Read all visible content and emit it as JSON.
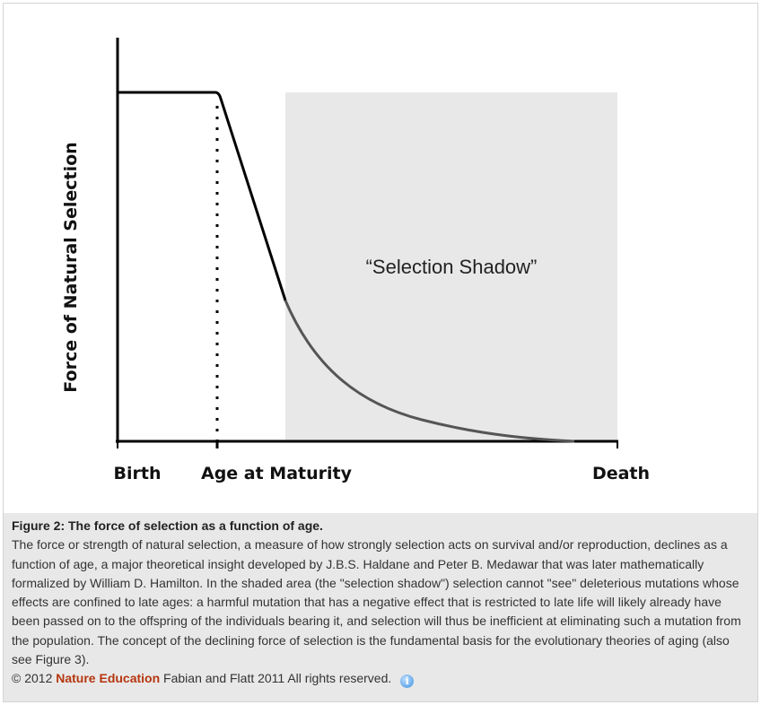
{
  "figure": {
    "y_axis_label": "Force of Natural Selection",
    "x_labels": [
      "Birth",
      "Age at Maturity",
      "Death"
    ],
    "shadow_label": "“Selection Shadow”",
    "shadow_color": "#e8e8e8"
  },
  "caption": {
    "title": "Figure 2: The force of selection as a function of age.",
    "body": "The force or strength of natural selection, a measure of how strongly selection acts on survival and/or reproduction, declines as a function of age, a major theoretical insight developed by J.B.S. Haldane and Peter B. Medawar that was later mathematically formalized by William D. Hamilton. In the shaded area (the \"selection shadow\") selection cannot \"see\" deleterious mutations whose effects are confined to late ages: a harmful mutation that has a negative effect that is restricted to late life will likely already have been passed on to the offspring of the individuals bearing it, and selection will thus be inefficient at eliminating such a mutation from the population. The concept of the declining force of selection is the fundamental basis for the evolutionary theories of aging (also see Figure 3).",
    "copyright": "© 2012",
    "publisher": "Nature Education",
    "credit": "Fabian and Flatt 2011 All rights reserved.",
    "info_icon": "info-icon",
    "publisher_color": "#b5360f"
  }
}
